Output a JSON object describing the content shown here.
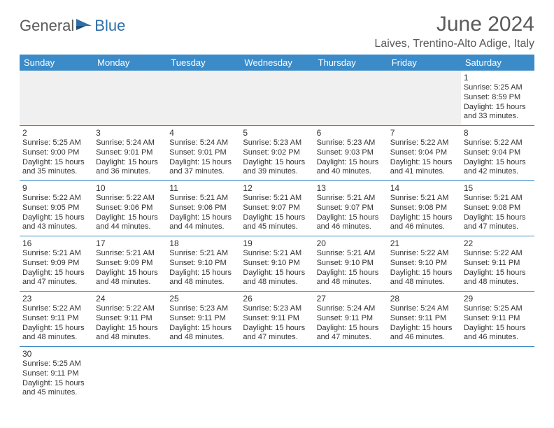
{
  "brand": {
    "part1": "General",
    "part2": "Blue"
  },
  "title": "June 2024",
  "location": "Laives, Trentino-Alto Adige, Italy",
  "colors": {
    "header_bg": "#3b8bc9",
    "header_text": "#ffffff",
    "border": "#3b8bc9",
    "text": "#333333",
    "title_text": "#5a5a5a",
    "brand_blue": "#2f6fa8",
    "empty_bg": "#f0f0f0",
    "page_bg": "#ffffff"
  },
  "fonts": {
    "title_size": 30,
    "location_size": 16,
    "header_size": 13,
    "daynum_size": 12,
    "info_size": 11
  },
  "weekdays": [
    "Sunday",
    "Monday",
    "Tuesday",
    "Wednesday",
    "Thursday",
    "Friday",
    "Saturday"
  ],
  "days": {
    "1": {
      "sunrise": "Sunrise: 5:25 AM",
      "sunset": "Sunset: 8:59 PM",
      "daylight": "Daylight: 15 hours and 33 minutes."
    },
    "2": {
      "sunrise": "Sunrise: 5:25 AM",
      "sunset": "Sunset: 9:00 PM",
      "daylight": "Daylight: 15 hours and 35 minutes."
    },
    "3": {
      "sunrise": "Sunrise: 5:24 AM",
      "sunset": "Sunset: 9:01 PM",
      "daylight": "Daylight: 15 hours and 36 minutes."
    },
    "4": {
      "sunrise": "Sunrise: 5:24 AM",
      "sunset": "Sunset: 9:01 PM",
      "daylight": "Daylight: 15 hours and 37 minutes."
    },
    "5": {
      "sunrise": "Sunrise: 5:23 AM",
      "sunset": "Sunset: 9:02 PM",
      "daylight": "Daylight: 15 hours and 39 minutes."
    },
    "6": {
      "sunrise": "Sunrise: 5:23 AM",
      "sunset": "Sunset: 9:03 PM",
      "daylight": "Daylight: 15 hours and 40 minutes."
    },
    "7": {
      "sunrise": "Sunrise: 5:22 AM",
      "sunset": "Sunset: 9:04 PM",
      "daylight": "Daylight: 15 hours and 41 minutes."
    },
    "8": {
      "sunrise": "Sunrise: 5:22 AM",
      "sunset": "Sunset: 9:04 PM",
      "daylight": "Daylight: 15 hours and 42 minutes."
    },
    "9": {
      "sunrise": "Sunrise: 5:22 AM",
      "sunset": "Sunset: 9:05 PM",
      "daylight": "Daylight: 15 hours and 43 minutes."
    },
    "10": {
      "sunrise": "Sunrise: 5:22 AM",
      "sunset": "Sunset: 9:06 PM",
      "daylight": "Daylight: 15 hours and 44 minutes."
    },
    "11": {
      "sunrise": "Sunrise: 5:21 AM",
      "sunset": "Sunset: 9:06 PM",
      "daylight": "Daylight: 15 hours and 44 minutes."
    },
    "12": {
      "sunrise": "Sunrise: 5:21 AM",
      "sunset": "Sunset: 9:07 PM",
      "daylight": "Daylight: 15 hours and 45 minutes."
    },
    "13": {
      "sunrise": "Sunrise: 5:21 AM",
      "sunset": "Sunset: 9:07 PM",
      "daylight": "Daylight: 15 hours and 46 minutes."
    },
    "14": {
      "sunrise": "Sunrise: 5:21 AM",
      "sunset": "Sunset: 9:08 PM",
      "daylight": "Daylight: 15 hours and 46 minutes."
    },
    "15": {
      "sunrise": "Sunrise: 5:21 AM",
      "sunset": "Sunset: 9:08 PM",
      "daylight": "Daylight: 15 hours and 47 minutes."
    },
    "16": {
      "sunrise": "Sunrise: 5:21 AM",
      "sunset": "Sunset: 9:09 PM",
      "daylight": "Daylight: 15 hours and 47 minutes."
    },
    "17": {
      "sunrise": "Sunrise: 5:21 AM",
      "sunset": "Sunset: 9:09 PM",
      "daylight": "Daylight: 15 hours and 48 minutes."
    },
    "18": {
      "sunrise": "Sunrise: 5:21 AM",
      "sunset": "Sunset: 9:10 PM",
      "daylight": "Daylight: 15 hours and 48 minutes."
    },
    "19": {
      "sunrise": "Sunrise: 5:21 AM",
      "sunset": "Sunset: 9:10 PM",
      "daylight": "Daylight: 15 hours and 48 minutes."
    },
    "20": {
      "sunrise": "Sunrise: 5:21 AM",
      "sunset": "Sunset: 9:10 PM",
      "daylight": "Daylight: 15 hours and 48 minutes."
    },
    "21": {
      "sunrise": "Sunrise: 5:22 AM",
      "sunset": "Sunset: 9:10 PM",
      "daylight": "Daylight: 15 hours and 48 minutes."
    },
    "22": {
      "sunrise": "Sunrise: 5:22 AM",
      "sunset": "Sunset: 9:11 PM",
      "daylight": "Daylight: 15 hours and 48 minutes."
    },
    "23": {
      "sunrise": "Sunrise: 5:22 AM",
      "sunset": "Sunset: 9:11 PM",
      "daylight": "Daylight: 15 hours and 48 minutes."
    },
    "24": {
      "sunrise": "Sunrise: 5:22 AM",
      "sunset": "Sunset: 9:11 PM",
      "daylight": "Daylight: 15 hours and 48 minutes."
    },
    "25": {
      "sunrise": "Sunrise: 5:23 AM",
      "sunset": "Sunset: 9:11 PM",
      "daylight": "Daylight: 15 hours and 48 minutes."
    },
    "26": {
      "sunrise": "Sunrise: 5:23 AM",
      "sunset": "Sunset: 9:11 PM",
      "daylight": "Daylight: 15 hours and 47 minutes."
    },
    "27": {
      "sunrise": "Sunrise: 5:24 AM",
      "sunset": "Sunset: 9:11 PM",
      "daylight": "Daylight: 15 hours and 47 minutes."
    },
    "28": {
      "sunrise": "Sunrise: 5:24 AM",
      "sunset": "Sunset: 9:11 PM",
      "daylight": "Daylight: 15 hours and 46 minutes."
    },
    "29": {
      "sunrise": "Sunrise: 5:25 AM",
      "sunset": "Sunset: 9:11 PM",
      "daylight": "Daylight: 15 hours and 46 minutes."
    },
    "30": {
      "sunrise": "Sunrise: 5:25 AM",
      "sunset": "Sunset: 9:11 PM",
      "daylight": "Daylight: 15 hours and 45 minutes."
    }
  },
  "layout": {
    "first_weekday_index": 6,
    "num_days": 30,
    "rows": 6,
    "cols": 7
  }
}
